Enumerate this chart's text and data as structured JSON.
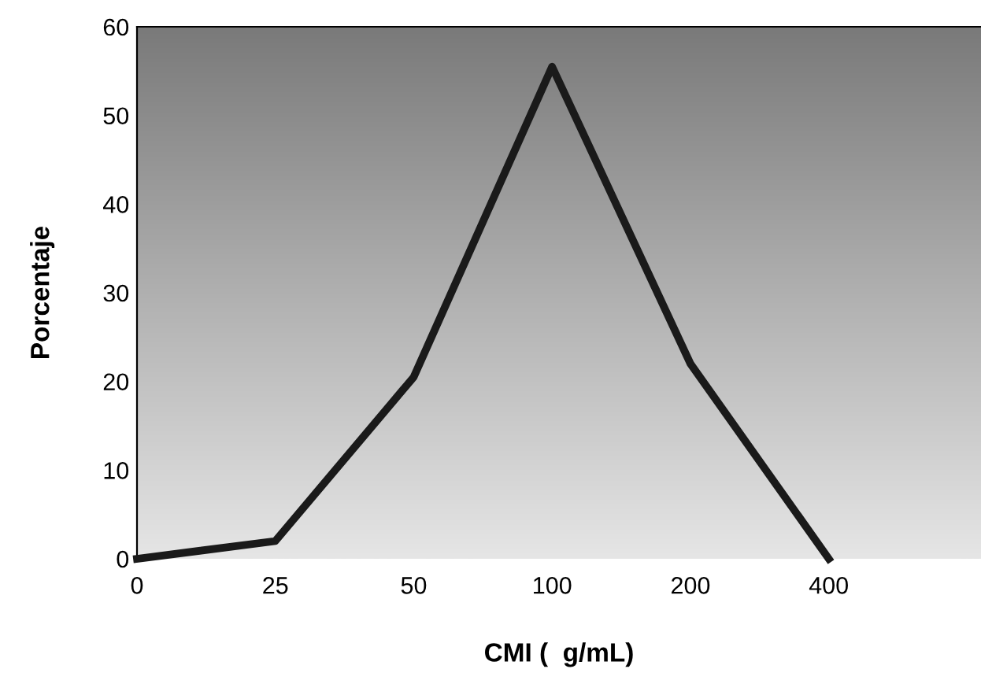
{
  "chart_data": {
    "type": "line",
    "xlabel": "CMI (  g/mL)",
    "ylabel": "Porcentaje",
    "categories": [
      "0",
      "25",
      "50",
      "100",
      "200",
      "400"
    ],
    "series": [
      {
        "color": "#1a1a1a",
        "values": [
          0,
          2,
          20.5,
          55.5,
          22,
          0
        ]
      }
    ],
    "ylim": [
      0,
      60
    ],
    "yticks": [
      0,
      10,
      20,
      30,
      40,
      50,
      60
    ],
    "grid": false,
    "legend": false,
    "marker": "none",
    "line_style": "solid"
  }
}
